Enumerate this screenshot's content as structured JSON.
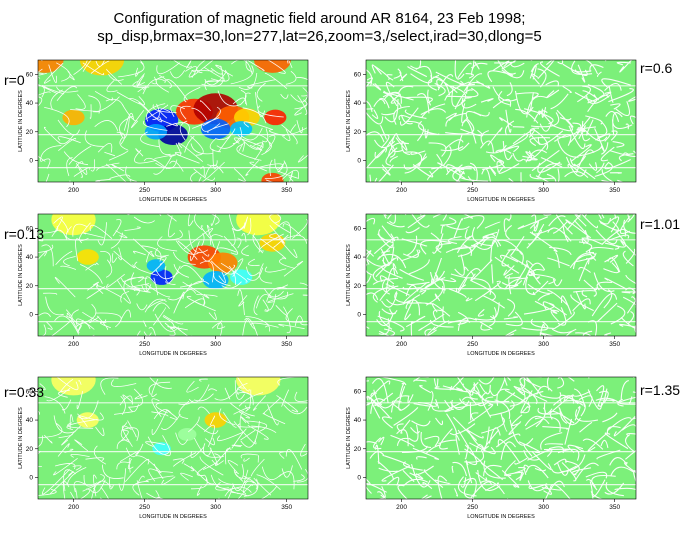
{
  "title_line1": "Configuration of magnetic field around AR 8164, 23 Feb 1998;",
  "title_line2": "sp_disp,brmax=30,lon=277,lat=26,zoom=3,/select,irad=30,dlong=5",
  "xlabel": "LONGITUDE IN DEGREES",
  "ylabel": "LATITUDE IN DEGREES",
  "x_ticks": [
    "200",
    "250",
    "300",
    "350"
  ],
  "y_ticks": [
    "60",
    "40",
    "20",
    "0"
  ],
  "panels": [
    {
      "id": "p0",
      "label": "r=0",
      "field": "strong"
    },
    {
      "id": "p06",
      "label": "r=0.6",
      "field": "none"
    },
    {
      "id": "p013",
      "label": "r=0.13",
      "field": "medium"
    },
    {
      "id": "p101",
      "label": "r=1.01",
      "field": "none"
    },
    {
      "id": "p033",
      "label": "r=0.33",
      "field": "weak"
    },
    {
      "id": "p135",
      "label": "r=1.35",
      "field": "none"
    }
  ],
  "colors": {
    "background_field": "#7cf07a",
    "line": "#ffffff"
  }
}
